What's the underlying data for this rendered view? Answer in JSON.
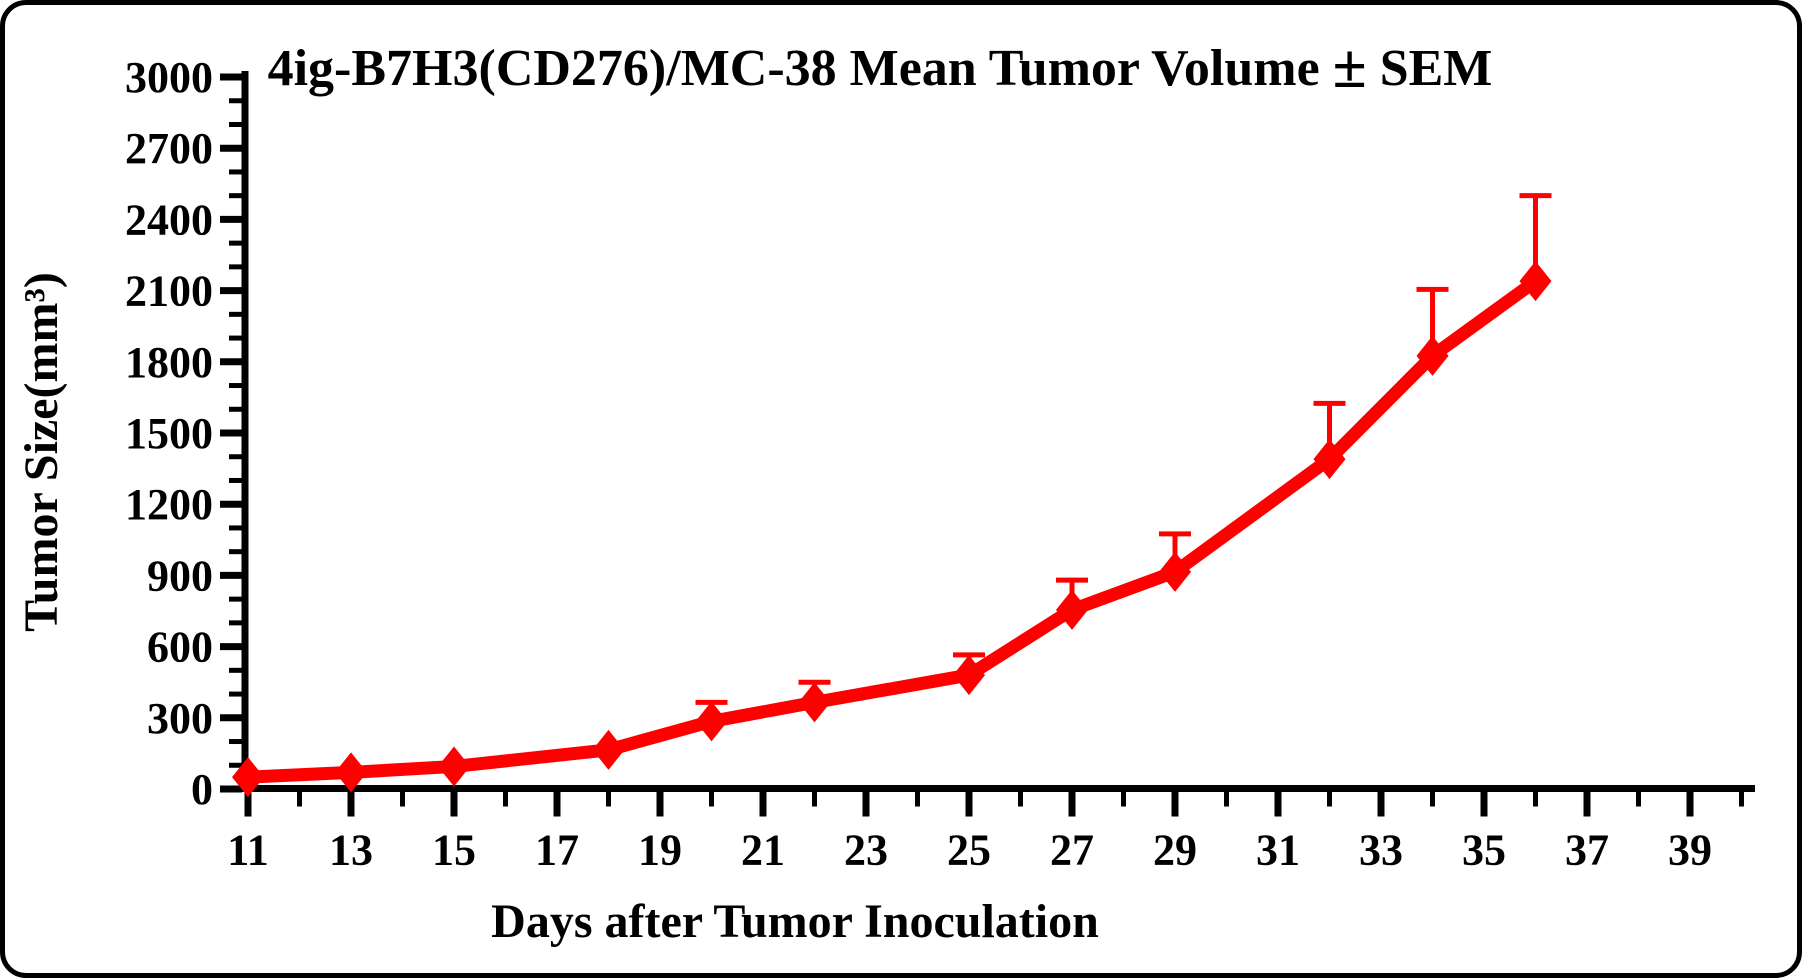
{
  "chart_data": {
    "type": "line",
    "title": "4ig-B7H3(CD276)/MC-38 Mean Tumor Volume ± SEM",
    "xlabel": "Days after Tumor Inoculation",
    "ylabel": "Tumor Size(mm³)",
    "legend": false,
    "grid": false,
    "xlim": [
      11,
      40
    ],
    "ylim": [
      0,
      3000
    ],
    "x_ticks_major": [
      11,
      13,
      15,
      17,
      19,
      21,
      23,
      25,
      27,
      29,
      31,
      33,
      35,
      37,
      39
    ],
    "x_ticks_minor": [
      12,
      14,
      16,
      18,
      20,
      22,
      24,
      26,
      28,
      30,
      32,
      34,
      36,
      38,
      40
    ],
    "y_ticks_major": [
      0,
      300,
      600,
      900,
      1200,
      1500,
      1800,
      2100,
      2400,
      2700,
      3000
    ],
    "y_minor_step": 100,
    "error_bars": "upper SEM only",
    "series": [
      {
        "name": "4ig-B7H3(CD276)/MC-38 mean tumor volume",
        "color": "#FF0000",
        "marker": "diamond",
        "x": [
          11,
          13,
          15,
          18,
          20,
          22,
          25,
          27,
          29,
          32,
          34,
          36
        ],
        "y": [
          50,
          70,
          95,
          165,
          285,
          365,
          480,
          755,
          915,
          1390,
          1825,
          2140
        ],
        "sem_upper": [
          null,
          null,
          null,
          null,
          80,
          85,
          85,
          125,
          160,
          235,
          280,
          360
        ]
      }
    ]
  },
  "colors": {
    "line": "#FF0000",
    "axis": "#000000",
    "text": "#000000",
    "background": "#FFFFFF",
    "frame_border": "#000000"
  }
}
